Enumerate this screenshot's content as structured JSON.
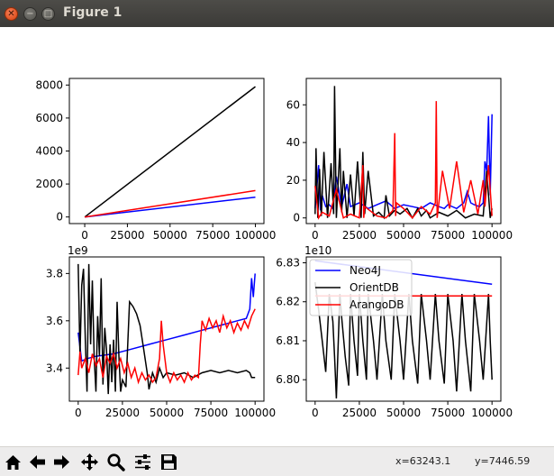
{
  "window": {
    "title": "Figure 1"
  },
  "toolbar": {
    "icons": [
      "home-icon",
      "back-arrow-icon",
      "forward-arrow-icon",
      "pan-icon",
      "zoom-icon",
      "subplots-config-icon",
      "save-icon"
    ],
    "x_readout": "x=63243.1",
    "y_readout": "y=7446.59"
  },
  "chart_data": [
    {
      "type": "line",
      "position": "top-left",
      "xlim": [
        -9000,
        105000
      ],
      "ylim": [
        -400,
        8400
      ],
      "xticks": [
        0,
        25000,
        50000,
        75000,
        100000
      ],
      "yticks": [
        0,
        2000,
        4000,
        6000,
        8000
      ],
      "offset_text": "",
      "series": [
        {
          "color": "#0000ff",
          "x": [
            0,
            100000
          ],
          "y": [
            0,
            1200
          ]
        },
        {
          "color": "#000000",
          "x": [
            0,
            100000
          ],
          "y": [
            0,
            7900
          ]
        },
        {
          "color": "#ff0000",
          "x": [
            0,
            100000
          ],
          "y": [
            0,
            1600
          ]
        }
      ]
    },
    {
      "type": "line",
      "position": "top-right",
      "xlim": [
        -5000,
        105000
      ],
      "ylim": [
        -3,
        74
      ],
      "xticks": [
        0,
        25000,
        50000,
        75000,
        100000
      ],
      "yticks": [
        0,
        20,
        40,
        60
      ],
      "offset_text": "",
      "series": [
        {
          "color": "#0000ff",
          "x": [
            0,
            2000,
            3000,
            4000,
            6000,
            8000,
            10000,
            12000,
            15000,
            18000,
            20000,
            25000,
            30000,
            35000,
            40000,
            45000,
            50000,
            55000,
            60000,
            65000,
            70000,
            73000,
            75000,
            80000,
            84000,
            86000,
            88000,
            90000,
            93000,
            95000,
            96000,
            97000,
            98000,
            99000,
            100000
          ],
          "y": [
            5,
            28,
            4,
            12,
            6,
            7,
            5,
            22,
            6,
            18,
            6,
            8,
            5,
            7,
            9,
            5,
            7,
            6,
            5,
            8,
            6,
            5,
            7,
            5,
            8,
            14,
            8,
            7,
            6,
            8,
            30,
            25,
            54,
            12,
            55
          ]
        },
        {
          "color": "#000000",
          "x": [
            0,
            500,
            1500,
            2500,
            3500,
            5000,
            7000,
            9000,
            10500,
            11000,
            12000,
            14000,
            15000,
            16000,
            18000,
            20000,
            22000,
            24000,
            26000,
            27000,
            28000,
            30000,
            33000,
            36000,
            39000,
            40000,
            42000,
            45000,
            48000,
            52000,
            55000,
            58000,
            60000,
            63000,
            65000,
            70000,
            75000,
            80000,
            85000,
            90000,
            95000,
            97000,
            99000,
            100000
          ],
          "y": [
            2,
            37,
            0,
            26,
            1,
            35,
            0,
            29,
            2,
            70,
            0,
            37,
            3,
            25,
            0,
            23,
            1,
            30,
            0,
            35,
            2,
            25,
            1,
            3,
            0,
            12,
            1,
            4,
            2,
            5,
            0,
            5,
            1,
            4,
            0,
            3,
            1,
            4,
            0,
            2,
            1,
            25,
            0,
            5
          ]
        },
        {
          "color": "#ff0000",
          "x": [
            0,
            2000,
            4000,
            8000,
            12000,
            16000,
            20000,
            25000,
            27000,
            27500,
            28000,
            35000,
            40000,
            44000,
            45000,
            45500,
            46000,
            50000,
            55000,
            60000,
            65000,
            68000,
            68500,
            69000,
            72000,
            76000,
            80000,
            84000,
            88000,
            92000,
            95000,
            96000,
            98000,
            100000
          ],
          "y": [
            17,
            0,
            3,
            1,
            15,
            0,
            2,
            0,
            28,
            0,
            6,
            1,
            0,
            4,
            45,
            1,
            8,
            5,
            0,
            6,
            2,
            8,
            62,
            0,
            25,
            5,
            30,
            3,
            20,
            2,
            20,
            6,
            28,
            1
          ]
        }
      ]
    },
    {
      "type": "line",
      "position": "bottom-left",
      "xlim": [
        -5000,
        105000
      ],
      "ylim": [
        3.26,
        3.87
      ],
      "xticks": [
        0,
        25000,
        50000,
        75000,
        100000
      ],
      "yticks": [
        3.4,
        3.6,
        3.8
      ],
      "ytick_labels": [
        "3.4",
        "3.6",
        "3.8"
      ],
      "offset_text": "1e9",
      "series": [
        {
          "color": "#0000ff",
          "x": [
            0,
            2000,
            5000,
            10000,
            20000,
            30000,
            40000,
            50000,
            60000,
            70000,
            80000,
            90000,
            95000,
            97000,
            98000,
            99000,
            100000
          ],
          "y": [
            3.55,
            3.43,
            3.44,
            3.45,
            3.46,
            3.48,
            3.5,
            3.52,
            3.54,
            3.56,
            3.58,
            3.6,
            3.61,
            3.65,
            3.78,
            3.7,
            3.8
          ]
        },
        {
          "color": "#000000",
          "x": [
            0,
            1000,
            2000,
            3000,
            4000,
            5000,
            6000,
            7000,
            8000,
            9000,
            10000,
            11000,
            12000,
            13000,
            14000,
            15000,
            16000,
            17000,
            18000,
            19000,
            20000,
            21000,
            22000,
            23000,
            24000,
            25000,
            27000,
            29000,
            31000,
            33000,
            35000,
            37000,
            39000,
            40000,
            42000,
            44000,
            46000,
            48000,
            50000,
            55000,
            60000,
            65000,
            70000,
            75000,
            80000,
            85000,
            90000,
            95000,
            97000,
            98000,
            100000
          ],
          "y": [
            3.84,
            3.45,
            3.75,
            3.82,
            3.52,
            3.3,
            3.84,
            3.5,
            3.77,
            3.45,
            3.3,
            3.62,
            3.45,
            3.78,
            3.33,
            3.57,
            3.48,
            3.29,
            3.5,
            3.34,
            3.52,
            3.3,
            3.68,
            3.45,
            3.3,
            3.35,
            3.32,
            3.68,
            3.66,
            3.63,
            3.58,
            3.48,
            3.38,
            3.31,
            3.38,
            3.34,
            3.4,
            3.36,
            3.38,
            3.37,
            3.38,
            3.36,
            3.38,
            3.39,
            3.38,
            3.39,
            3.38,
            3.39,
            3.38,
            3.36,
            3.36
          ]
        },
        {
          "color": "#ff0000",
          "x": [
            0,
            1000,
            2000,
            4000,
            6000,
            8000,
            10000,
            12000,
            14000,
            16000,
            18000,
            20000,
            22000,
            24000,
            26000,
            28000,
            30000,
            32000,
            34000,
            36000,
            38000,
            40000,
            42000,
            44000,
            46000,
            47000,
            48000,
            50000,
            52000,
            54000,
            56000,
            58000,
            60000,
            62000,
            64000,
            66000,
            68000,
            69000,
            70000,
            72000,
            74000,
            76000,
            78000,
            80000,
            82000,
            84000,
            86000,
            88000,
            90000,
            92000,
            94000,
            96000,
            98000,
            100000
          ],
          "y": [
            3.37,
            3.47,
            3.4,
            3.44,
            3.38,
            3.46,
            3.41,
            3.44,
            3.36,
            3.45,
            3.42,
            3.46,
            3.4,
            3.44,
            3.38,
            3.42,
            3.36,
            3.4,
            3.34,
            3.38,
            3.35,
            3.37,
            3.34,
            3.36,
            3.44,
            3.6,
            3.5,
            3.38,
            3.34,
            3.38,
            3.35,
            3.37,
            3.34,
            3.38,
            3.35,
            3.37,
            3.36,
            3.5,
            3.6,
            3.56,
            3.61,
            3.57,
            3.6,
            3.55,
            3.62,
            3.57,
            3.6,
            3.55,
            3.59,
            3.56,
            3.6,
            3.57,
            3.62,
            3.65
          ]
        }
      ]
    },
    {
      "type": "line",
      "position": "bottom-right",
      "xlim": [
        -5000,
        105000
      ],
      "ylim": [
        6.7945,
        6.8315
      ],
      "xticks": [
        0,
        25000,
        50000,
        75000,
        100000
      ],
      "yticks": [
        6.8,
        6.81,
        6.82,
        6.83
      ],
      "ytick_labels": [
        "6.80",
        "6.81",
        "6.82",
        "6.83"
      ],
      "offset_text": "1e10",
      "legend": {
        "placement": "upper-left",
        "entries": [
          "Neo4J",
          "OrientDB",
          "ArangoDB"
        ]
      },
      "series": [
        {
          "name": "Neo4J",
          "color": "#0000ff",
          "x": [
            0,
            100000
          ],
          "y": [
            6.8305,
            6.8245
          ]
        },
        {
          "name": "OrientDB",
          "color": "#000000",
          "x": [
            0,
            2000,
            4000,
            6000,
            8000,
            10000,
            11000,
            12000,
            14000,
            15000,
            17000,
            19000,
            20000,
            22000,
            24000,
            25000,
            27000,
            29000,
            30000,
            33000,
            35000,
            38000,
            40000,
            43000,
            45000,
            48000,
            50000,
            53000,
            55000,
            58000,
            60000,
            63000,
            65000,
            68000,
            70000,
            73000,
            75000,
            78000,
            80000,
            83000,
            85000,
            88000,
            90000,
            93000,
            95000,
            98000,
            99000,
            100000
          ],
          "y": [
            6.825,
            6.818,
            6.81,
            6.802,
            6.822,
            6.815,
            6.806,
            6.7952,
            6.822,
            6.816,
            6.806,
            6.7985,
            6.822,
            6.81,
            6.801,
            6.822,
            6.81,
            6.8,
            6.822,
            6.81,
            6.8,
            6.822,
            6.81,
            6.8,
            6.822,
            6.81,
            6.8,
            6.822,
            6.81,
            6.799,
            6.822,
            6.81,
            6.8,
            6.822,
            6.81,
            6.799,
            6.822,
            6.81,
            6.797,
            6.822,
            6.81,
            6.797,
            6.822,
            6.81,
            6.8,
            6.822,
            6.81,
            6.8
          ]
        },
        {
          "name": "ArangoDB",
          "color": "#ff0000",
          "x": [
            0,
            100000
          ],
          "y": [
            6.8215,
            6.8215
          ]
        }
      ]
    }
  ]
}
